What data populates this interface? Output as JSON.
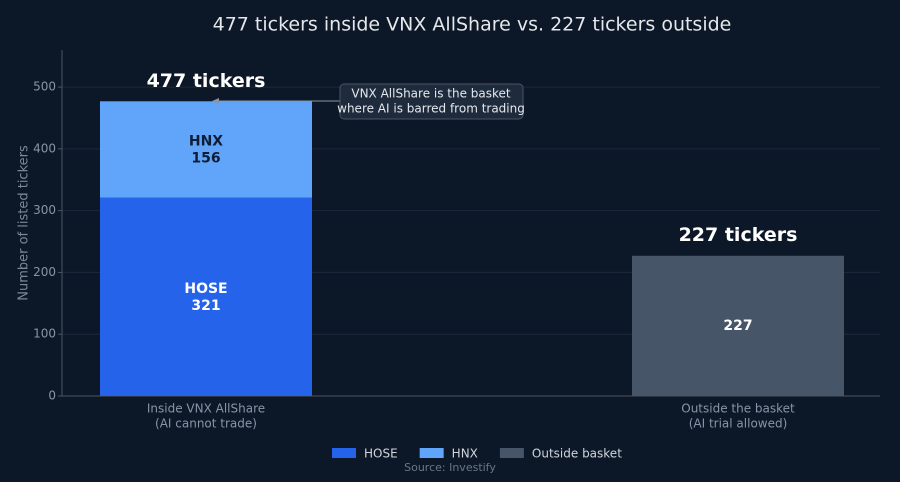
{
  "chart_data": {
    "type": "stacked_bar",
    "title": "477 tickers inside VNX AllShare vs. 227 tickers outside",
    "y_label": "Number of listed tickers",
    "categories": [
      "Inside VNX AllShare\n(AI cannot trade)",
      "Outside the basket\n(AI trial allowed)"
    ],
    "series": [
      {
        "name": "HOSE",
        "color": "#2563eb",
        "values": [
          321,
          null
        ]
      },
      {
        "name": "HNX",
        "color": "#60a5fa",
        "values": [
          156,
          null
        ]
      },
      {
        "name": "Outside basket",
        "color": "#475569",
        "values": [
          null,
          227
        ]
      }
    ],
    "total_labels": [
      "477 tickers",
      "227 tickers"
    ],
    "annotation": "VNX AllShare is the basket\nwhere AI is barred from trading",
    "source": "Source: Investify",
    "ylim": [
      0,
      560
    ],
    "yticks": [
      0,
      100,
      200,
      300,
      400,
      500
    ],
    "grid": true,
    "legend": "bottom"
  }
}
